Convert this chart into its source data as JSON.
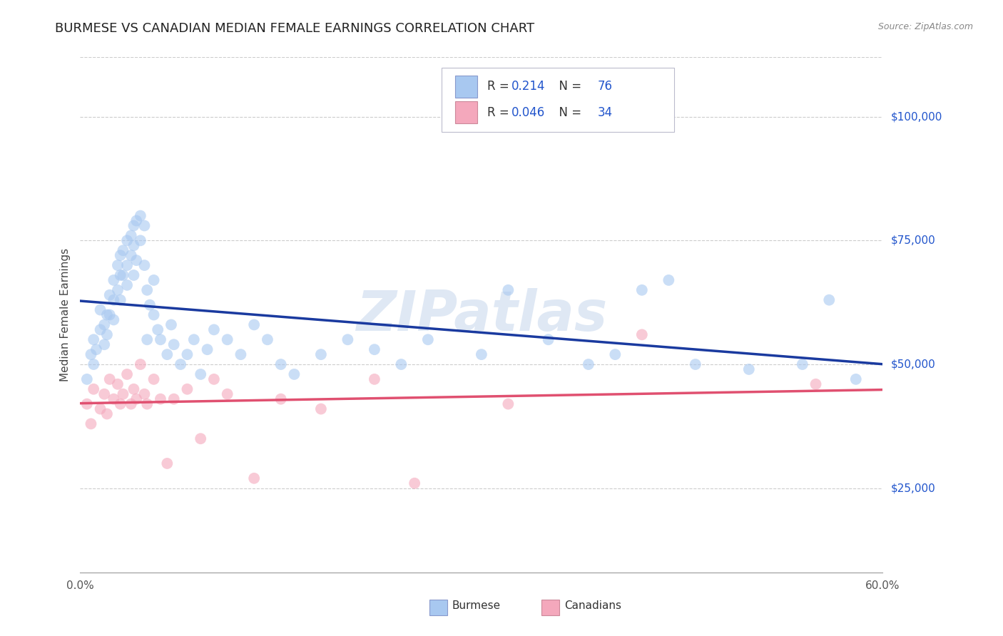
{
  "title": "BURMESE VS CANADIAN MEDIAN FEMALE EARNINGS CORRELATION CHART",
  "source": "Source: ZipAtlas.com",
  "ylabel": "Median Female Earnings",
  "ytick_labels": [
    "$25,000",
    "$50,000",
    "$75,000",
    "$100,000"
  ],
  "ytick_values": [
    25000,
    50000,
    75000,
    100000
  ],
  "ylim": [
    8000,
    112000
  ],
  "xlim": [
    0.0,
    0.6
  ],
  "burmese_color": "#a8c8f0",
  "canadian_color": "#f4a8bc",
  "burmese_line_color": "#1a3a9f",
  "canadian_line_color": "#e05070",
  "burmese_x": [
    0.005,
    0.008,
    0.01,
    0.01,
    0.012,
    0.015,
    0.015,
    0.018,
    0.018,
    0.02,
    0.02,
    0.022,
    0.022,
    0.025,
    0.025,
    0.025,
    0.028,
    0.028,
    0.03,
    0.03,
    0.03,
    0.032,
    0.032,
    0.035,
    0.035,
    0.035,
    0.038,
    0.038,
    0.04,
    0.04,
    0.04,
    0.042,
    0.042,
    0.045,
    0.045,
    0.048,
    0.048,
    0.05,
    0.05,
    0.052,
    0.055,
    0.055,
    0.058,
    0.06,
    0.065,
    0.068,
    0.07,
    0.075,
    0.08,
    0.085,
    0.09,
    0.095,
    0.1,
    0.11,
    0.12,
    0.13,
    0.14,
    0.15,
    0.16,
    0.18,
    0.2,
    0.22,
    0.24,
    0.26,
    0.3,
    0.32,
    0.35,
    0.38,
    0.4,
    0.42,
    0.44,
    0.46,
    0.5,
    0.54,
    0.56,
    0.58
  ],
  "burmese_y": [
    47000,
    52000,
    55000,
    50000,
    53000,
    57000,
    61000,
    58000,
    54000,
    60000,
    56000,
    64000,
    60000,
    67000,
    63000,
    59000,
    70000,
    65000,
    72000,
    68000,
    63000,
    73000,
    68000,
    75000,
    70000,
    66000,
    76000,
    72000,
    78000,
    74000,
    68000,
    79000,
    71000,
    80000,
    75000,
    78000,
    70000,
    65000,
    55000,
    62000,
    67000,
    60000,
    57000,
    55000,
    52000,
    58000,
    54000,
    50000,
    52000,
    55000,
    48000,
    53000,
    57000,
    55000,
    52000,
    58000,
    55000,
    50000,
    48000,
    52000,
    55000,
    53000,
    50000,
    55000,
    52000,
    65000,
    55000,
    50000,
    52000,
    65000,
    67000,
    50000,
    49000,
    50000,
    63000,
    47000
  ],
  "canadian_x": [
    0.005,
    0.008,
    0.01,
    0.015,
    0.018,
    0.02,
    0.022,
    0.025,
    0.028,
    0.03,
    0.032,
    0.035,
    0.038,
    0.04,
    0.042,
    0.045,
    0.048,
    0.05,
    0.055,
    0.06,
    0.065,
    0.07,
    0.08,
    0.09,
    0.1,
    0.11,
    0.13,
    0.15,
    0.18,
    0.22,
    0.25,
    0.32,
    0.42,
    0.55
  ],
  "canadian_y": [
    42000,
    38000,
    45000,
    41000,
    44000,
    40000,
    47000,
    43000,
    46000,
    42000,
    44000,
    48000,
    42000,
    45000,
    43000,
    50000,
    44000,
    42000,
    47000,
    43000,
    30000,
    43000,
    45000,
    35000,
    47000,
    44000,
    27000,
    43000,
    41000,
    47000,
    26000,
    42000,
    56000,
    46000
  ],
  "watermark": "ZIPatlas",
  "background_color": "#ffffff",
  "grid_color": "#cccccc",
  "marker_size": 130,
  "marker_alpha": 0.6,
  "title_fontsize": 13,
  "axis_label_fontsize": 11,
  "tick_fontsize": 11,
  "legend_fontsize": 12
}
